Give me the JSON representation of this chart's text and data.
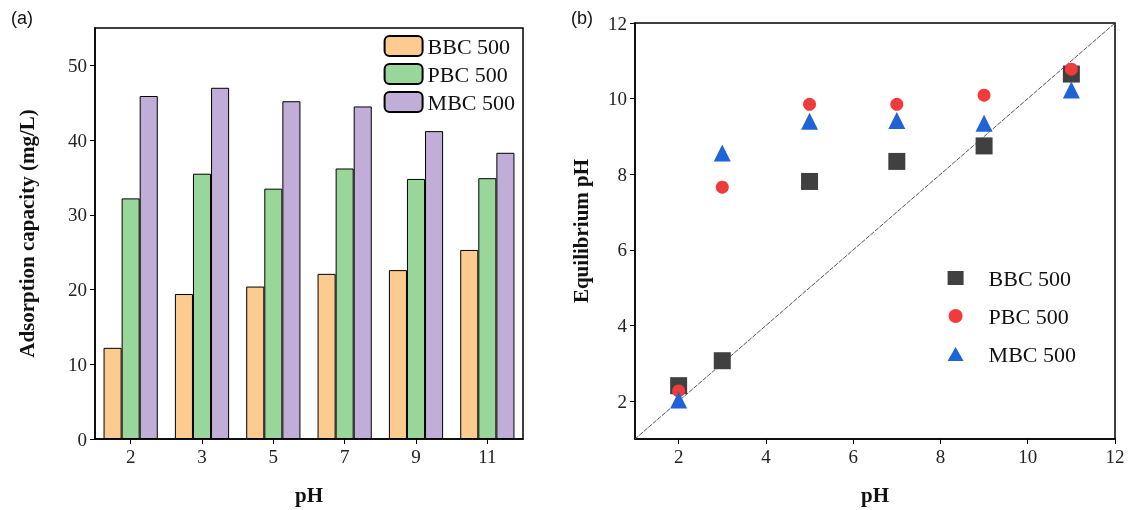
{
  "chart_data": [
    {
      "type": "bar",
      "title": "(a)",
      "xlabel": "pH",
      "ylabel": "Adsorption capacity (mg/L)",
      "categories": [
        "2",
        "3",
        "5",
        "7",
        "9",
        "11"
      ],
      "series": [
        {
          "name": "BBC 500",
          "color": "#fdca8f",
          "values": [
            12.2,
            19.4,
            20.4,
            22.1,
            22.6,
            25.3
          ]
        },
        {
          "name": "PBC 500",
          "color": "#98d69a",
          "values": [
            32.2,
            35.5,
            33.5,
            36.2,
            34.8,
            34.9
          ]
        },
        {
          "name": "MBC 500",
          "color": "#c0aed8",
          "values": [
            45.9,
            47.0,
            45.2,
            44.5,
            41.2,
            38.3
          ]
        }
      ],
      "ylim": [
        0,
        55
      ],
      "yticks": [
        0,
        10,
        20,
        30,
        40,
        50
      ],
      "grid": false,
      "legend": "top right"
    },
    {
      "type": "scatter",
      "title": "(b)",
      "xlabel": "pH",
      "ylabel": "Equilibrium pH",
      "series": [
        {
          "name": "BBC 500",
          "color": "#404040",
          "marker": "square",
          "x": [
            2,
            3,
            5,
            7,
            9,
            11
          ],
          "values": [
            2.41,
            3.07,
            7.81,
            8.34,
            8.75,
            10.65
          ]
        },
        {
          "name": "PBC 500",
          "color": "#ef3b3b",
          "marker": "circle",
          "x": [
            2,
            3,
            5,
            7,
            9,
            11
          ],
          "values": [
            2.27,
            7.66,
            9.85,
            9.85,
            10.09,
            10.78
          ]
        },
        {
          "name": "MBC 500",
          "color": "#1f63d6",
          "marker": "triangle",
          "x": [
            2,
            3,
            5,
            7,
            9,
            11
          ],
          "values": [
            2.03,
            8.56,
            9.4,
            9.42,
            9.35,
            10.23
          ]
        },
        {
          "type": "line",
          "color": "#555555",
          "line_style": "dashed",
          "marker": "none",
          "x": [
            1,
            12
          ],
          "values": [
            1,
            12
          ]
        }
      ],
      "xlim": [
        1,
        12
      ],
      "xticks": [
        2,
        4,
        6,
        8,
        10,
        12
      ],
      "ylim": [
        1,
        12
      ],
      "yticks": [
        2,
        4,
        6,
        8,
        10,
        12
      ],
      "grid": false,
      "legend": "bottom right"
    }
  ]
}
